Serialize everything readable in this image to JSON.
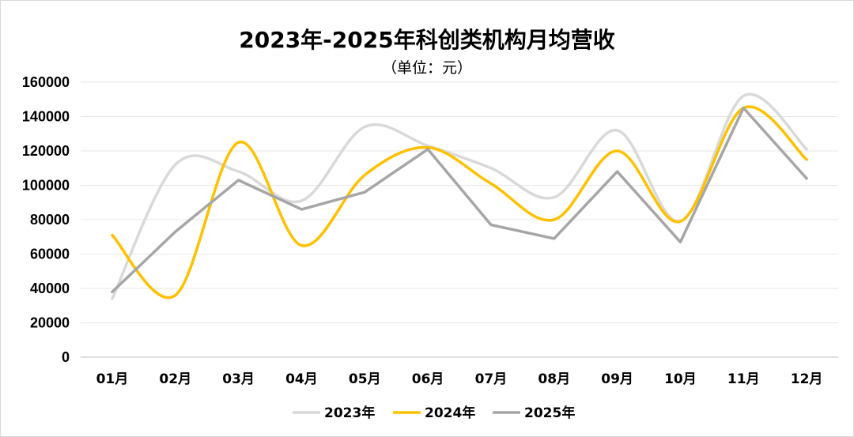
{
  "chart_data": {
    "type": "line",
    "title": "2023年-2025年科创类机构月均营收",
    "subtitle": "（单位：元）",
    "categories": [
      "01月",
      "02月",
      "03月",
      "04月",
      "05月",
      "06月",
      "07月",
      "08月",
      "09月",
      "10月",
      "11月",
      "12月"
    ],
    "ylim": [
      0,
      160000
    ],
    "yticks": [
      0,
      20000,
      40000,
      60000,
      80000,
      100000,
      120000,
      140000,
      160000
    ],
    "grid": true,
    "legend_position": "bottom",
    "series": [
      {
        "name": "2023年",
        "color": "#d9d9d9",
        "smooth": true,
        "values": [
          34000,
          112000,
          108000,
          91000,
          134000,
          123000,
          110000,
          93000,
          132000,
          79000,
          152000,
          121000
        ]
      },
      {
        "name": "2024年",
        "color": "#ffc000",
        "smooth": true,
        "values": [
          71000,
          36000,
          125000,
          65000,
          106000,
          122000,
          101000,
          80000,
          120000,
          79000,
          145000,
          115000
        ]
      },
      {
        "name": "2025年",
        "color": "#a6a6a6",
        "smooth": false,
        "values": [
          38000,
          73000,
          103000,
          86000,
          96000,
          121000,
          77000,
          69000,
          108000,
          67000,
          145000,
          104000
        ]
      }
    ]
  }
}
